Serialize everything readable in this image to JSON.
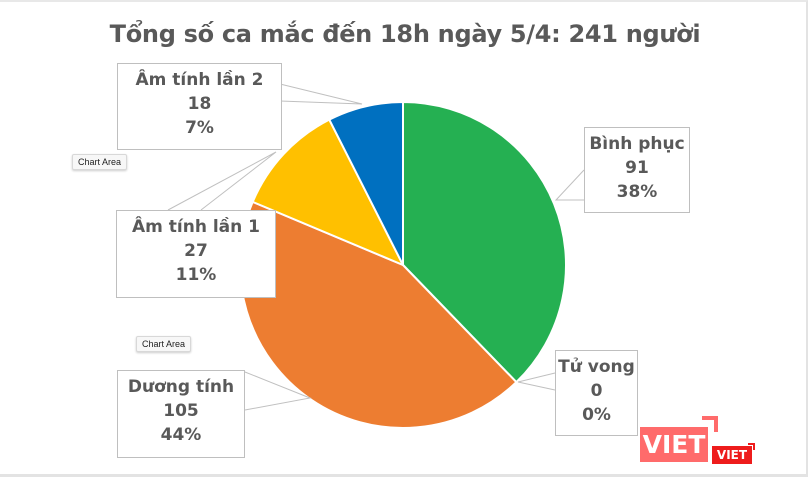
{
  "chart_data": {
    "type": "pie",
    "title": "Tổng số ca mắc đến 18h ngày 5/4: 241 người",
    "total": 241,
    "categories": [
      "Bình phục",
      "Tử vong",
      "Dương tính",
      "Âm tính lần 1",
      "Âm tính lần 2"
    ],
    "values": [
      91,
      0,
      105,
      27,
      18
    ],
    "percentages": [
      "38%",
      "0%",
      "44%",
      "11%",
      "7%"
    ],
    "colors": [
      "#25b052",
      "#a5a5a5",
      "#ed7d31",
      "#ffc000",
      "#0070c0"
    ],
    "start_angle_deg": 0,
    "direction": "clockwise",
    "legend": "none (data callout labels)"
  },
  "labels": {
    "binh_phuc": {
      "name": "Bình phục",
      "value": "91",
      "pct": "38%"
    },
    "tu_vong": {
      "name": "Tử vong",
      "value": "0",
      "pct": "0%"
    },
    "duong_tinh": {
      "name": "Dương tính",
      "value": "105",
      "pct": "44%"
    },
    "am_tinh_1": {
      "name": "Âm tính lần 1",
      "value": "27",
      "pct": "11%"
    },
    "am_tinh_2": {
      "name": "Âm tính lần 2",
      "value": "18",
      "pct": "7%"
    }
  },
  "tooltips": [
    "Chart Area",
    "Chart Area"
  ],
  "watermark": {
    "big": "VIET",
    "small": "VIET"
  }
}
